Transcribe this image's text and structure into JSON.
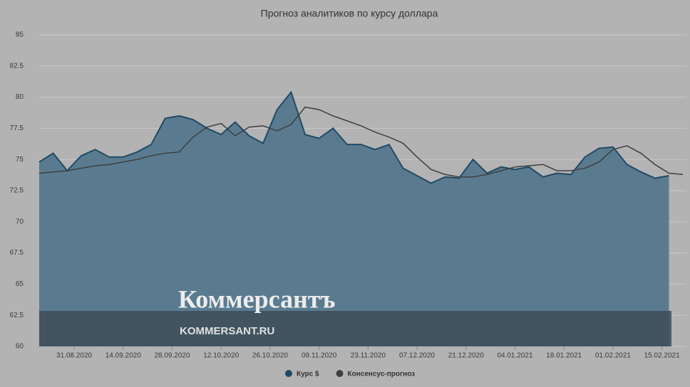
{
  "chart_data": {
    "type": "area-line",
    "title": "Прогноз аналитиков по курсу доллара",
    "x": [
      "21.08.2020",
      "25.08.2020",
      "29.08.2020",
      "02.09.2020",
      "06.09.2020",
      "10.09.2020",
      "14.09.2020",
      "18.09.2020",
      "22.09.2020",
      "26.09.2020",
      "30.09.2020",
      "04.10.2020",
      "08.10.2020",
      "12.10.2020",
      "16.10.2020",
      "20.10.2020",
      "24.10.2020",
      "28.10.2020",
      "01.11.2020",
      "05.11.2020",
      "09.11.2020",
      "13.11.2020",
      "17.11.2020",
      "21.11.2020",
      "25.11.2020",
      "29.11.2020",
      "03.12.2020",
      "07.12.2020",
      "11.12.2020",
      "15.12.2020",
      "19.12.2020",
      "23.12.2020",
      "27.12.2020",
      "31.12.2020",
      "04.01.2021",
      "08.01.2021",
      "12.01.2021",
      "16.01.2021",
      "20.01.2021",
      "24.01.2021",
      "28.01.2021",
      "01.02.2021",
      "05.02.2021",
      "09.02.2021",
      "13.02.2021",
      "17.02.2021",
      "21.02.2021"
    ],
    "series": [
      {
        "name": "Курс $",
        "kind": "area",
        "color": "#1f4a66",
        "fill": "#5a7b8f",
        "values": [
          74.8,
          75.5,
          74.1,
          75.3,
          75.8,
          75.2,
          75.2,
          75.6,
          76.2,
          78.3,
          78.5,
          78.2,
          77.5,
          77.0,
          78.0,
          76.9,
          76.3,
          79.0,
          80.4,
          77.0,
          76.7,
          77.5,
          76.2,
          76.2,
          75.8,
          76.2,
          74.3,
          73.7,
          73.1,
          73.6,
          73.5,
          75.0,
          73.9,
          74.4,
          74.2,
          74.4,
          73.6,
          73.9,
          73.8,
          75.2,
          75.9,
          76.0,
          74.6,
          74.0,
          73.5,
          73.7,
          null
        ]
      },
      {
        "name": "Консенсус-прогноз",
        "kind": "line",
        "color": "#3f3f3f",
        "values": [
          73.9,
          74.0,
          74.1,
          74.3,
          74.5,
          74.6,
          74.8,
          75.0,
          75.3,
          75.5,
          75.6,
          76.8,
          77.6,
          77.9,
          76.9,
          77.6,
          77.7,
          77.3,
          77.8,
          79.2,
          79.0,
          78.5,
          78.1,
          77.7,
          77.2,
          76.8,
          76.3,
          75.2,
          74.2,
          73.8,
          73.6,
          73.6,
          73.8,
          74.1,
          74.4,
          74.5,
          74.6,
          74.1,
          74.1,
          74.3,
          74.8,
          75.8,
          76.1,
          75.5,
          74.6,
          73.9,
          73.8
        ]
      }
    ],
    "xlim": [
      "21.08.2020",
      "22.02.2021"
    ],
    "xticks": [
      "31.08.2020",
      "14.09.2020",
      "28.09.2020",
      "12.10.2020",
      "26.10.2020",
      "09.11.2020",
      "23.11.2020",
      "07.12.2020",
      "21.12.2020",
      "04.01.2021",
      "18.01.2021",
      "01.02.2021",
      "15.02.2021"
    ],
    "ylim": [
      60,
      85
    ],
    "yticks": [
      60,
      62.5,
      65,
      67.5,
      70,
      72.5,
      75,
      77.5,
      80,
      82.5,
      85
    ],
    "grid": true,
    "legend": "bottom"
  },
  "watermark": {
    "brand": "Коммерсантъ",
    "site": "KOMMERSANT.RU"
  }
}
